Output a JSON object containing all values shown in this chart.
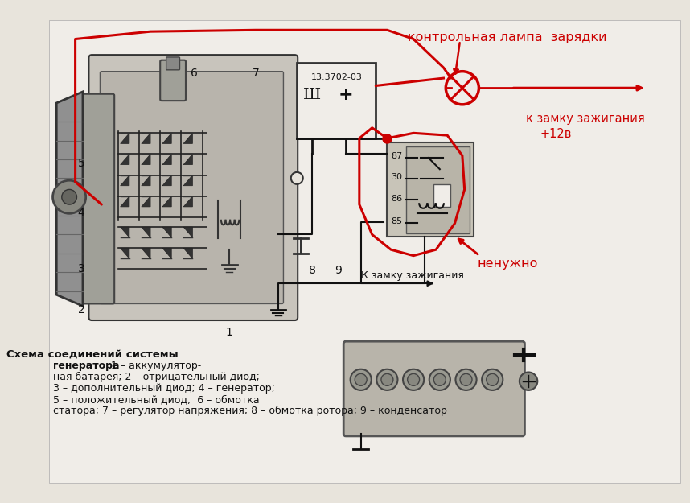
{
  "bg_color": "#e8e4dc",
  "diagram_area_color": "#d8d4cc",
  "text_color": "#111111",
  "red_color": "#cc0000",
  "annotations": {
    "top_label": "контрольная лампа  зарядки",
    "right_label1": "к замку зажигания",
    "right_label2": "+12в",
    "bottom_right_label": "ненужно",
    "ignition_label": "К замку зажигания"
  },
  "bottom_text_bold": "Схема соединений системы",
  "bottom_text_lines": [
    [
      "генератора",
      true,
      "              1 – аккумулятор-"
    ],
    [
      "ная батарея; 2 – отрицательный диод;",
      false,
      ""
    ],
    [
      "3 – дополнительный диод; 4 – генератор;",
      false,
      ""
    ],
    [
      "5 – положительный диод;  6 – обмотка",
      false,
      ""
    ],
    [
      "статора; 7 – регулятор напряжения; 8 – обмотка ротора; 9 – конденсатор",
      false,
      ""
    ]
  ],
  "vreg_label": "13.3702-03",
  "vreg_sh": "Ш",
  "vreg_plus": "+",
  "relay_terminals": [
    "87",
    "30",
    "86",
    "85"
  ],
  "number_labels": [
    [
      "5",
      48,
      195
    ],
    [
      "4",
      48,
      262
    ],
    [
      "6",
      198,
      75
    ],
    [
      "7",
      280,
      75
    ],
    [
      "3",
      48,
      335
    ],
    [
      "2",
      48,
      390
    ],
    [
      "1",
      245,
      420
    ],
    [
      "8",
      355,
      338
    ],
    [
      "9",
      390,
      338
    ]
  ]
}
